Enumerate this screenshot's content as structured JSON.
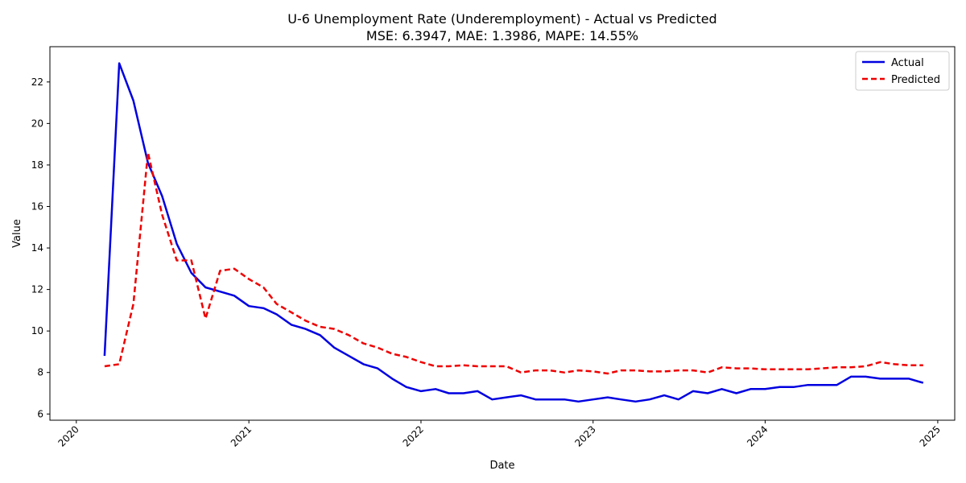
{
  "chart_data": {
    "type": "line",
    "title": "U-6 Unemployment Rate (Underemployment) - Actual vs Predicted",
    "subtitle": "MSE: 6.3947, MAE: 1.3986, MAPE: 14.55%",
    "xlabel": "Date",
    "ylabel": "Value",
    "xlim": [
      "2019-11-06",
      "2025-02-06"
    ],
    "ylim": [
      5.7,
      23.7
    ],
    "x_ticks": [
      "2020",
      "2021",
      "2022",
      "2023",
      "2024",
      "2025"
    ],
    "y_ticks": [
      "6",
      "8",
      "10",
      "12",
      "14",
      "16",
      "18",
      "20",
      "22"
    ],
    "grid": false,
    "legend_position": "top-right",
    "x": [
      "2020-03",
      "2020-04",
      "2020-05",
      "2020-06",
      "2020-07",
      "2020-08",
      "2020-09",
      "2020-10",
      "2020-11",
      "2020-12",
      "2021-01",
      "2021-02",
      "2021-03",
      "2021-04",
      "2021-05",
      "2021-06",
      "2021-07",
      "2021-08",
      "2021-09",
      "2021-10",
      "2021-11",
      "2021-12",
      "2022-01",
      "2022-02",
      "2022-03",
      "2022-04",
      "2022-05",
      "2022-06",
      "2022-07",
      "2022-08",
      "2022-09",
      "2022-10",
      "2022-11",
      "2022-12",
      "2023-01",
      "2023-02",
      "2023-03",
      "2023-04",
      "2023-05",
      "2023-06",
      "2023-07",
      "2023-08",
      "2023-09",
      "2023-10",
      "2023-11",
      "2023-12",
      "2024-01",
      "2024-02",
      "2024-03",
      "2024-04",
      "2024-05",
      "2024-06",
      "2024-07",
      "2024-08",
      "2024-09",
      "2024-10",
      "2024-11",
      "2024-12"
    ],
    "series": [
      {
        "name": "Actual",
        "color": "#0000e0",
        "style": "solid",
        "values": [
          8.8,
          22.9,
          21.1,
          18.1,
          16.5,
          14.2,
          12.8,
          12.1,
          11.9,
          11.7,
          11.2,
          11.1,
          10.8,
          10.3,
          10.1,
          9.8,
          9.2,
          8.8,
          8.4,
          8.2,
          7.7,
          7.3,
          7.1,
          7.2,
          7.0,
          7.0,
          7.1,
          6.7,
          6.8,
          6.9,
          6.7,
          6.7,
          6.7,
          6.6,
          6.7,
          6.8,
          6.7,
          6.6,
          6.7,
          6.9,
          6.7,
          7.1,
          7.0,
          7.2,
          7.0,
          7.2,
          7.2,
          7.3,
          7.3,
          7.4,
          7.4,
          7.4,
          7.8,
          7.8,
          7.7,
          7.7,
          7.7,
          7.5
        ]
      },
      {
        "name": "Predicted",
        "color": "#ee0000",
        "style": "dashed",
        "values": [
          8.3,
          8.4,
          11.3,
          18.6,
          15.6,
          13.4,
          13.4,
          10.6,
          12.9,
          13.0,
          12.5,
          12.1,
          11.3,
          10.9,
          10.5,
          10.2,
          10.1,
          9.8,
          9.4,
          9.2,
          8.9,
          8.75,
          8.5,
          8.3,
          8.3,
          8.35,
          8.3,
          8.3,
          8.3,
          8.0,
          8.1,
          8.1,
          8.0,
          8.1,
          8.05,
          7.95,
          8.1,
          8.1,
          8.05,
          8.05,
          8.1,
          8.1,
          8.0,
          8.25,
          8.2,
          8.2,
          8.15,
          8.15,
          8.15,
          8.15,
          8.2,
          8.25,
          8.25,
          8.3,
          8.5,
          8.4,
          8.35,
          8.35
        ]
      }
    ]
  }
}
